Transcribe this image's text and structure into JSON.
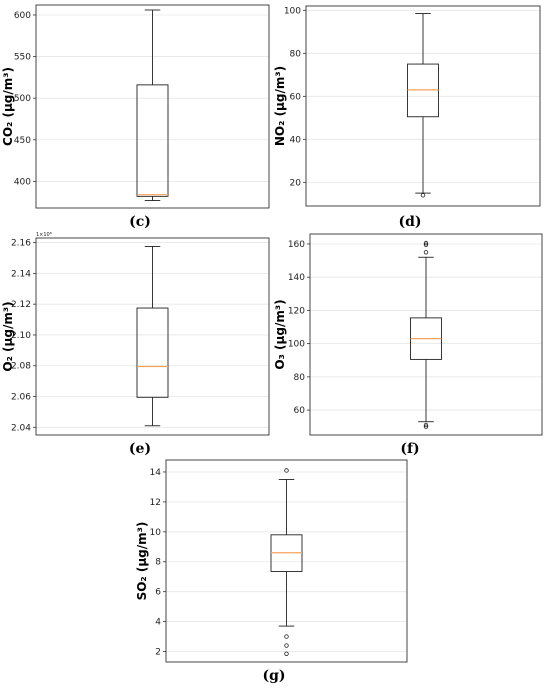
{
  "captions": {
    "c": "(c)",
    "d": "(d)",
    "e": "(e)",
    "f": "(f)",
    "g": "(g)"
  },
  "chart_data": [
    {
      "id": "c",
      "type": "box",
      "ylabel": "CO₂ (μg/m³)",
      "ylim": [
        368,
        612
      ],
      "yticks": [
        400,
        450,
        500,
        550,
        600
      ],
      "ytick_labels": [
        "400",
        "450",
        "500",
        "550",
        "600"
      ],
      "grid": true,
      "box": {
        "whisker_low": 377,
        "q1": 382,
        "median": 384,
        "q3": 516,
        "whisker_high": 606
      },
      "outliers": []
    },
    {
      "id": "d",
      "type": "box",
      "ylabel": "NO₂ (μg/m³)",
      "ylim": [
        9,
        102
      ],
      "yticks": [
        20,
        40,
        60,
        80,
        100
      ],
      "ytick_labels": [
        "20",
        "40",
        "60",
        "80",
        "100"
      ],
      "grid": true,
      "box": {
        "whisker_low": 15,
        "q1": 50.5,
        "median": 63,
        "q3": 75,
        "whisker_high": 98.5
      },
      "outliers": [
        14
      ]
    },
    {
      "id": "e",
      "type": "box",
      "ylabel": "O₂ (μg/m³)",
      "multiplier_label": "1×10⁸",
      "ylim": [
        2.035,
        2.163
      ],
      "yticks": [
        2.04,
        2.06,
        2.08,
        2.1,
        2.12,
        2.14,
        2.16
      ],
      "ytick_labels": [
        "2.04",
        "2.06",
        "2.08",
        "2.10",
        "2.12",
        "2.14",
        "2.16"
      ],
      "grid": true,
      "box": {
        "whisker_low": 2.041,
        "q1": 2.0595,
        "median": 2.0795,
        "q3": 2.1175,
        "whisker_high": 2.1575
      },
      "outliers": []
    },
    {
      "id": "f",
      "type": "box",
      "ylabel": "O₃ (μg/m³)",
      "ylim": [
        45,
        166
      ],
      "yticks": [
        60,
        80,
        100,
        120,
        140,
        160
      ],
      "ytick_labels": [
        "60",
        "80",
        "100",
        "120",
        "140",
        "160"
      ],
      "grid": true,
      "box": {
        "whisker_low": 53,
        "q1": 90.5,
        "median": 103,
        "q3": 115.5,
        "whisker_high": 152
      },
      "outliers": [
        51,
        50,
        155,
        159.5,
        160.5
      ]
    },
    {
      "id": "g",
      "type": "box",
      "ylabel": "SO₂ (μg/m³)",
      "ylim": [
        1.3,
        14.8
      ],
      "yticks": [
        2,
        4,
        6,
        8,
        10,
        12,
        14
      ],
      "ytick_labels": [
        "2",
        "4",
        "6",
        "8",
        "10",
        "12",
        "14"
      ],
      "grid": true,
      "box": {
        "whisker_low": 3.7,
        "q1": 7.35,
        "median": 8.6,
        "q3": 9.8,
        "whisker_high": 13.5
      },
      "outliers": [
        14.1,
        3.0,
        2.4,
        1.85
      ]
    }
  ]
}
